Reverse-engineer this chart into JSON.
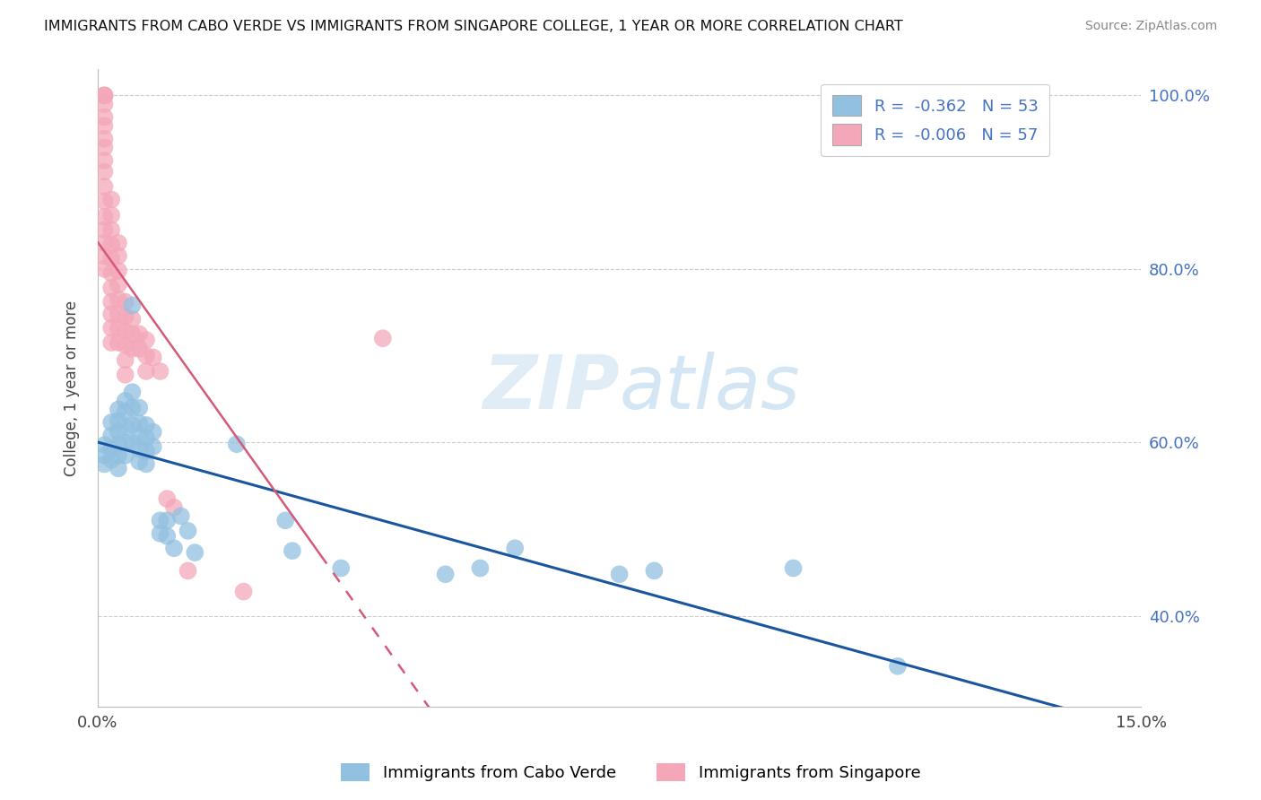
{
  "title": "IMMIGRANTS FROM CABO VERDE VS IMMIGRANTS FROM SINGAPORE COLLEGE, 1 YEAR OR MORE CORRELATION CHART",
  "source": "Source: ZipAtlas.com",
  "ylabel": "College, 1 year or more",
  "legend_label1": "Immigrants from Cabo Verde",
  "legend_label2": "Immigrants from Singapore",
  "legend_r1_val": "-0.362",
  "legend_n1_val": "53",
  "legend_r2_val": "-0.006",
  "legend_n2_val": "57",
  "xlim": [
    0.0,
    0.15
  ],
  "ylim": [
    0.295,
    1.03
  ],
  "xticks": [
    0.0,
    0.03,
    0.06,
    0.09,
    0.12,
    0.15
  ],
  "xtick_labels": [
    "0.0%",
    "",
    "",
    "",
    "",
    "15.0%"
  ],
  "yticks": [
    0.4,
    0.6,
    0.8,
    1.0
  ],
  "ytick_labels": [
    "40.0%",
    "60.0%",
    "80.0%",
    "100.0%"
  ],
  "color_blue": "#92c0e0",
  "color_pink": "#f4a7b9",
  "color_blue_line": "#1a56a0",
  "color_pink_line": "#d45a78",
  "watermark_zip": "ZIP",
  "watermark_atlas": "atlas",
  "cabo_verde_x": [
    0.001,
    0.001,
    0.001,
    0.002,
    0.002,
    0.002,
    0.002,
    0.003,
    0.003,
    0.003,
    0.003,
    0.003,
    0.003,
    0.004,
    0.004,
    0.004,
    0.004,
    0.004,
    0.005,
    0.005,
    0.005,
    0.005,
    0.005,
    0.006,
    0.006,
    0.006,
    0.006,
    0.006,
    0.007,
    0.007,
    0.007,
    0.007,
    0.008,
    0.008,
    0.009,
    0.009,
    0.01,
    0.01,
    0.011,
    0.012,
    0.013,
    0.014,
    0.02,
    0.027,
    0.028,
    0.035,
    0.05,
    0.055,
    0.06,
    0.075,
    0.08,
    0.1,
    0.115
  ],
  "cabo_verde_y": [
    0.597,
    0.585,
    0.575,
    0.623,
    0.608,
    0.592,
    0.58,
    0.638,
    0.625,
    0.612,
    0.598,
    0.585,
    0.57,
    0.648,
    0.635,
    0.618,
    0.6,
    0.585,
    0.758,
    0.658,
    0.64,
    0.62,
    0.6,
    0.64,
    0.622,
    0.607,
    0.592,
    0.578,
    0.62,
    0.605,
    0.59,
    0.575,
    0.612,
    0.595,
    0.51,
    0.495,
    0.51,
    0.492,
    0.478,
    0.515,
    0.498,
    0.473,
    0.598,
    0.51,
    0.475,
    0.455,
    0.448,
    0.455,
    0.478,
    0.448,
    0.452,
    0.455,
    0.342
  ],
  "singapore_x": [
    0.001,
    0.001,
    0.001,
    0.001,
    0.001,
    0.001,
    0.001,
    0.001,
    0.001,
    0.001,
    0.001,
    0.001,
    0.001,
    0.001,
    0.001,
    0.001,
    0.001,
    0.002,
    0.002,
    0.002,
    0.002,
    0.002,
    0.002,
    0.002,
    0.002,
    0.002,
    0.002,
    0.002,
    0.003,
    0.003,
    0.003,
    0.003,
    0.003,
    0.003,
    0.003,
    0.003,
    0.004,
    0.004,
    0.004,
    0.004,
    0.004,
    0.004,
    0.005,
    0.005,
    0.005,
    0.006,
    0.006,
    0.007,
    0.007,
    0.007,
    0.008,
    0.009,
    0.01,
    0.011,
    0.013,
    0.021,
    0.041
  ],
  "singapore_y": [
    1.0,
    1.0,
    1.0,
    0.99,
    0.975,
    0.965,
    0.95,
    0.94,
    0.925,
    0.912,
    0.895,
    0.878,
    0.86,
    0.845,
    0.83,
    0.815,
    0.8,
    0.88,
    0.862,
    0.845,
    0.828,
    0.812,
    0.795,
    0.778,
    0.762,
    0.748,
    0.732,
    0.715,
    0.83,
    0.815,
    0.798,
    0.782,
    0.765,
    0.748,
    0.732,
    0.715,
    0.762,
    0.745,
    0.728,
    0.712,
    0.695,
    0.678,
    0.742,
    0.725,
    0.708,
    0.725,
    0.708,
    0.718,
    0.7,
    0.682,
    0.698,
    0.682,
    0.535,
    0.525,
    0.452,
    0.428,
    0.72
  ]
}
